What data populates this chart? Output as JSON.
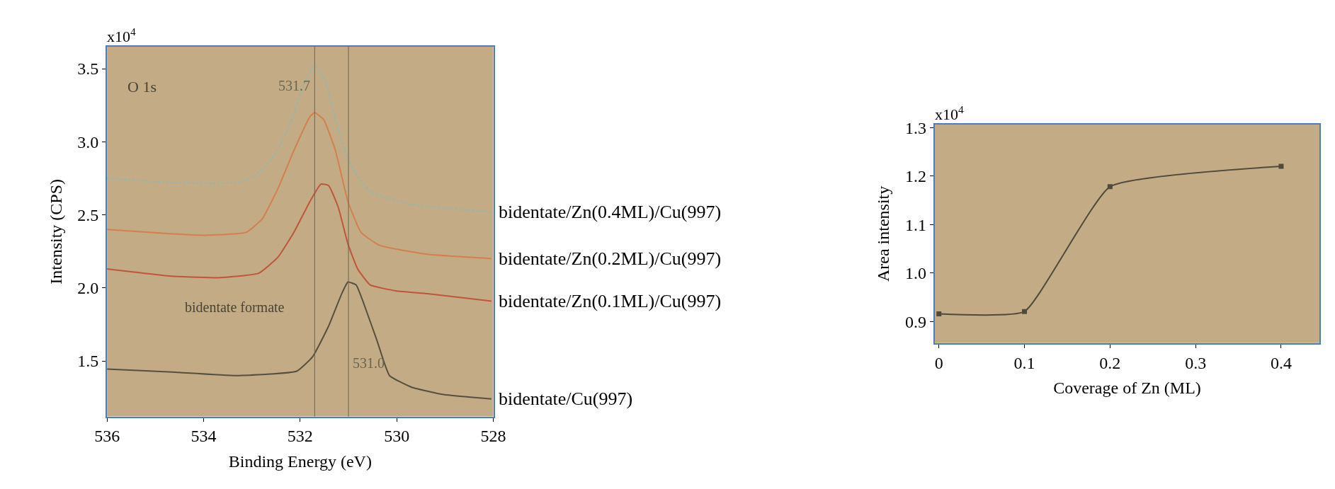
{
  "chart_data": [
    {
      "type": "line",
      "xlabel": "Binding Energy (eV)",
      "ylabel": "Intensity (CPS)",
      "xlim": [
        536,
        528
      ],
      "xticks": [
        536,
        534,
        532,
        530,
        528
      ],
      "ylim": [
        1.12,
        3.65
      ],
      "yticks": [
        1.5,
        {
          "value": 2.0,
          "label": "2.0"
        },
        2.5,
        {
          "value": 3.0,
          "label": "3.0"
        },
        3.5
      ],
      "legend": false,
      "grid": false,
      "series": [
        {
          "name": "bidentate/Zn(0.4ML)/Cu(997)",
          "color": "#8fb8b2",
          "line_style": "dotted",
          "x": [
            536,
            534.65,
            533.32,
            532.92,
            532.53,
            532.2,
            531.94,
            531.7,
            531.47,
            531.21,
            530.94,
            530.55,
            529.69,
            528.04
          ],
          "values": [
            2.75,
            2.72,
            2.72,
            2.77,
            2.91,
            3.13,
            3.38,
            3.53,
            3.4,
            3.08,
            2.83,
            2.66,
            2.57,
            2.52
          ]
        },
        {
          "name": "bidentate/Zn(0.2ML)/Cu(997)",
          "color": "#d4804e",
          "x": [
            536,
            534.65,
            533.98,
            533.12,
            532.79,
            532.46,
            532.13,
            531.8,
            531.7,
            531.51,
            531.27,
            531.01,
            530.74,
            530.35,
            529.36,
            528.04
          ],
          "values": [
            2.4,
            2.37,
            2.36,
            2.38,
            2.47,
            2.68,
            2.94,
            3.17,
            3.2,
            3.15,
            2.94,
            2.59,
            2.38,
            2.29,
            2.23,
            2.2
          ]
        },
        {
          "name": "bidentate/Zn(0.1ML)/Cu(997)",
          "color": "#c0553a",
          "x": [
            536,
            534.65,
            533.65,
            532.86,
            532.46,
            532.13,
            531.8,
            531.57,
            531.41,
            531.21,
            531.01,
            530.81,
            530.55,
            530.02,
            529.36,
            528.04
          ],
          "values": [
            2.13,
            2.08,
            2.07,
            2.1,
            2.21,
            2.38,
            2.59,
            2.71,
            2.7,
            2.55,
            2.3,
            2.13,
            2.02,
            1.98,
            1.96,
            1.91
          ]
        },
        {
          "name": "bidentate/Cu(997)",
          "color": "#55503f",
          "x": [
            536,
            534.65,
            533.32,
            532.07,
            531.74,
            531.41,
            531.14,
            531.01,
            530.84,
            530.68,
            530.41,
            530.15,
            529.69,
            529.03,
            528.04
          ],
          "values": [
            1.445,
            1.424,
            1.4,
            1.43,
            1.53,
            1.74,
            1.96,
            2.04,
            2.02,
            1.89,
            1.64,
            1.4,
            1.32,
            1.27,
            1.24
          ]
        }
      ],
      "ref_lines": [
        {
          "axis": "x",
          "value": 531.7,
          "label": "531.7",
          "color": "#6b6450"
        },
        {
          "axis": "x",
          "value": 531.0,
          "label": "531.0",
          "color": "#6b6450"
        }
      ],
      "annotations": [
        "x10$^{4}$",
        "O 1s",
        "bidentate formate"
      ]
    },
    {
      "type": "line",
      "xlabel": "Coverage of Zn (ML)",
      "ylabel": "Area intensity",
      "xlim": [
        -0.005,
        0.445
      ],
      "xticks": [
        0,
        0.1,
        0.2,
        0.3,
        0.4
      ],
      "ylim": [
        0.856,
        1.306
      ],
      "yticks": [
        0.9,
        {
          "value": 1.0,
          "label": "1.0"
        },
        1.1,
        1.2,
        1.3
      ],
      "legend": false,
      "grid": false,
      "marker": "square",
      "annotations": [
        "x10$^{4}$"
      ],
      "series": [
        {
          "color": "#4f4a3c",
          "x": [
            0,
            0.1,
            0.2,
            0.4
          ],
          "values": [
            0.916,
            0.921,
            1.178,
            1.22
          ]
        }
      ]
    }
  ]
}
